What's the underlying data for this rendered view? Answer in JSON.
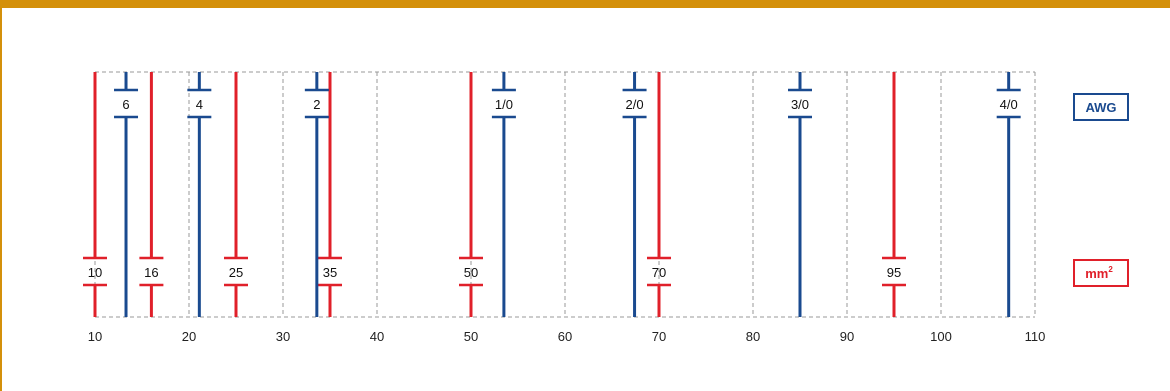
{
  "chart_data": {
    "type": "scatter",
    "xlim": [
      10,
      110
    ],
    "x_ticks": [
      "10",
      "20",
      "30",
      "40",
      "50",
      "60",
      "70",
      "80",
      "90",
      "100",
      "110"
    ],
    "grid": true,
    "series": [
      {
        "name": "AWG",
        "color": "#1a4a8f",
        "points": [
          {
            "label": "6",
            "x": 13.3
          },
          {
            "label": "4",
            "x": 21.1
          },
          {
            "label": "2",
            "x": 33.6
          },
          {
            "label": "1/0",
            "x": 53.5
          },
          {
            "label": "2/0",
            "x": 67.4
          },
          {
            "label": "3/0",
            "x": 85.0
          },
          {
            "label": "4/0",
            "x": 107.2
          }
        ]
      },
      {
        "name": "mm²",
        "name_base": "mm",
        "name_sup": "2",
        "color": "#e0202a",
        "points": [
          {
            "label": "10",
            "x": 10
          },
          {
            "label": "16",
            "x": 16
          },
          {
            "label": "25",
            "x": 25
          },
          {
            "label": "35",
            "x": 35
          },
          {
            "label": "50",
            "x": 50
          },
          {
            "label": "70",
            "x": 70
          },
          {
            "label": "95",
            "x": 95
          }
        ]
      }
    ]
  }
}
